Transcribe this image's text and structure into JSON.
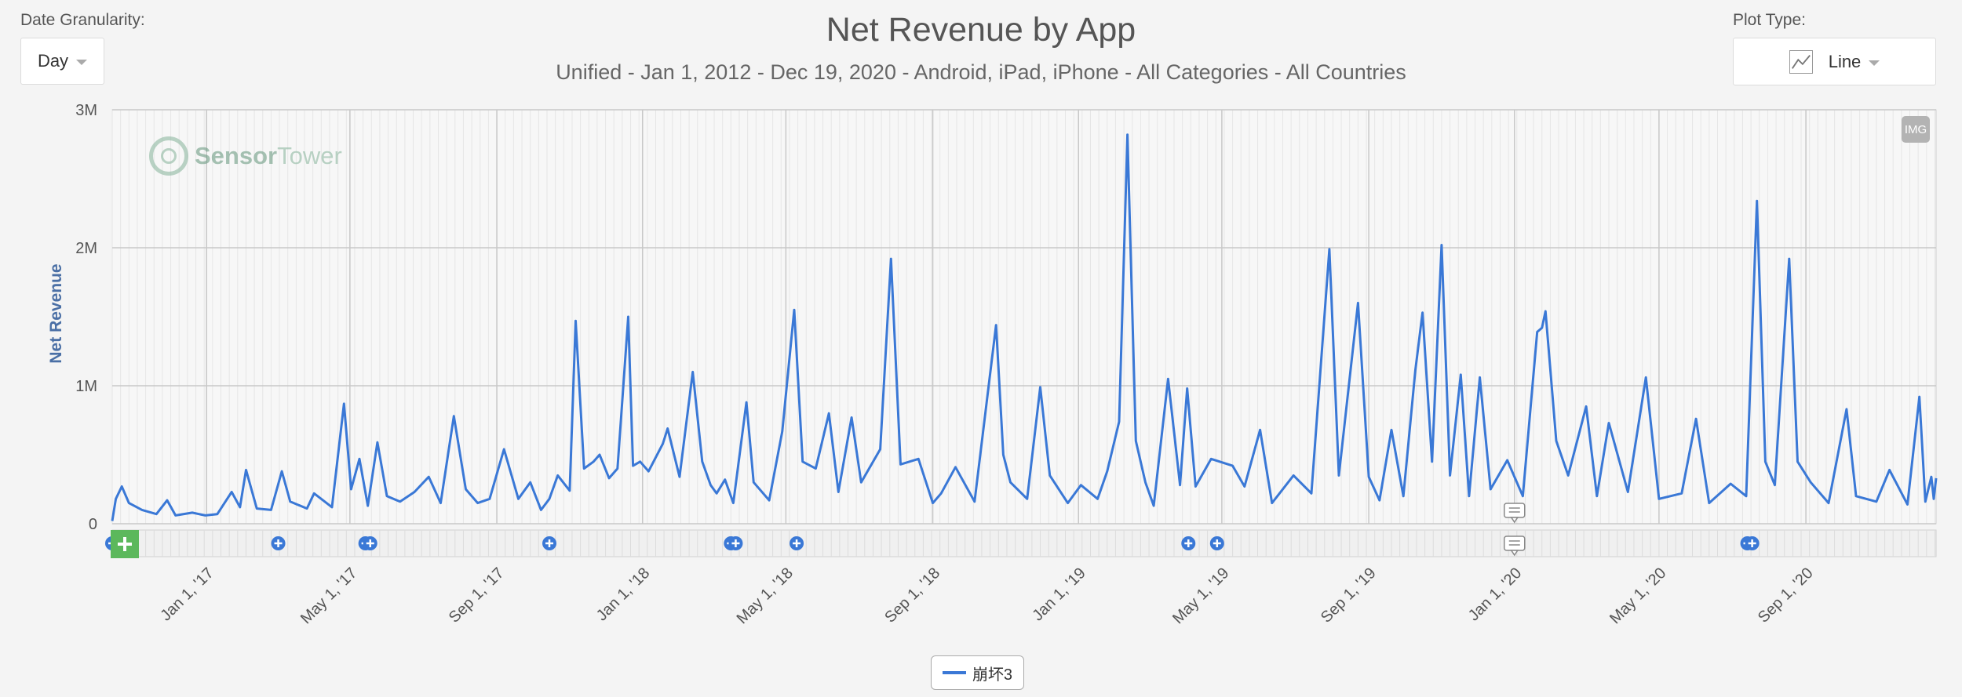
{
  "controls": {
    "date_granularity_label": "Date Granularity:",
    "date_granularity_value": "Day",
    "plot_type_label": "Plot Type:",
    "plot_type_value": "Line",
    "export_button": "IMG"
  },
  "watermark": {
    "bold": "Sensor",
    "light": "Tower"
  },
  "colors": {
    "series": "#3a78d6",
    "marker": "#3a78d6",
    "add_button": "#5cb85c",
    "background": "#f4f4f4"
  },
  "chart_data": {
    "type": "line",
    "title": "Net Revenue by App",
    "subtitle": "Unified - Jan 1, 2012 - Dec 19, 2020 - Android, iPad, iPhone - All Categories - All Countries",
    "ylabel": "Net Revenue",
    "xlabel": "",
    "ylim": [
      0,
      3000000
    ],
    "yticks": [
      {
        "value": 0,
        "label": "0"
      },
      {
        "value": 1000000,
        "label": "1M"
      },
      {
        "value": 2000000,
        "label": "2M"
      },
      {
        "value": 3000000,
        "label": "3M"
      }
    ],
    "xlim": [
      "2016-10-14",
      "2020-12-19"
    ],
    "xticks": [
      {
        "date": "2017-01-01",
        "label": "Jan 1, '17"
      },
      {
        "date": "2017-05-01",
        "label": "May 1, '17"
      },
      {
        "date": "2017-09-01",
        "label": "Sep 1, '17"
      },
      {
        "date": "2018-01-01",
        "label": "Jan 1, '18"
      },
      {
        "date": "2018-05-01",
        "label": "May 1, '18"
      },
      {
        "date": "2018-09-01",
        "label": "Sep 1, '18"
      },
      {
        "date": "2019-01-01",
        "label": "Jan 1, '19"
      },
      {
        "date": "2019-05-01",
        "label": "May 1, '19"
      },
      {
        "date": "2019-09-01",
        "label": "Sep 1, '19"
      },
      {
        "date": "2020-01-01",
        "label": "Jan 1, '20"
      },
      {
        "date": "2020-05-01",
        "label": "May 1, '20"
      },
      {
        "date": "2020-09-01",
        "label": "Sep 1, '20"
      }
    ],
    "grid": true,
    "legend_position": "bottom-center",
    "series": [
      {
        "name": "崩坏3",
        "color": "#3a78d6",
        "points": [
          [
            "2016-10-14",
            20000
          ],
          [
            "2016-10-17",
            180000
          ],
          [
            "2016-10-22",
            270000
          ],
          [
            "2016-10-28",
            150000
          ],
          [
            "2016-11-08",
            100000
          ],
          [
            "2016-11-20",
            70000
          ],
          [
            "2016-11-29",
            170000
          ],
          [
            "2016-12-06",
            60000
          ],
          [
            "2016-12-20",
            80000
          ],
          [
            "2016-12-31",
            60000
          ],
          [
            "2017-01-10",
            70000
          ],
          [
            "2017-01-22",
            230000
          ],
          [
            "2017-01-29",
            120000
          ],
          [
            "2017-02-03",
            390000
          ],
          [
            "2017-02-12",
            110000
          ],
          [
            "2017-02-24",
            100000
          ],
          [
            "2017-03-05",
            380000
          ],
          [
            "2017-03-12",
            160000
          ],
          [
            "2017-03-26",
            110000
          ],
          [
            "2017-04-01",
            220000
          ],
          [
            "2017-04-16",
            120000
          ],
          [
            "2017-04-26",
            870000
          ],
          [
            "2017-05-02",
            250000
          ],
          [
            "2017-05-09",
            470000
          ],
          [
            "2017-05-16",
            130000
          ],
          [
            "2017-05-24",
            590000
          ],
          [
            "2017-06-01",
            200000
          ],
          [
            "2017-06-12",
            160000
          ],
          [
            "2017-06-24",
            230000
          ],
          [
            "2017-07-06",
            340000
          ],
          [
            "2017-07-16",
            150000
          ],
          [
            "2017-07-27",
            780000
          ],
          [
            "2017-08-06",
            250000
          ],
          [
            "2017-08-16",
            150000
          ],
          [
            "2017-08-26",
            180000
          ],
          [
            "2017-09-07",
            540000
          ],
          [
            "2017-09-19",
            180000
          ],
          [
            "2017-09-29",
            300000
          ],
          [
            "2017-10-08",
            100000
          ],
          [
            "2017-10-15",
            180000
          ],
          [
            "2017-10-22",
            350000
          ],
          [
            "2017-11-01",
            240000
          ],
          [
            "2017-11-06",
            1470000
          ],
          [
            "2017-11-13",
            400000
          ],
          [
            "2017-11-21",
            450000
          ],
          [
            "2017-11-26",
            500000
          ],
          [
            "2017-12-04",
            330000
          ],
          [
            "2017-12-11",
            400000
          ],
          [
            "2017-12-20",
            1500000
          ],
          [
            "2017-12-24",
            420000
          ],
          [
            "2017-12-30",
            450000
          ],
          [
            "2018-01-06",
            380000
          ],
          [
            "2018-01-18",
            580000
          ],
          [
            "2018-01-22",
            690000
          ],
          [
            "2018-02-01",
            340000
          ],
          [
            "2018-02-12",
            1100000
          ],
          [
            "2018-02-20",
            450000
          ],
          [
            "2018-02-27",
            280000
          ],
          [
            "2018-03-04",
            220000
          ],
          [
            "2018-03-11",
            320000
          ],
          [
            "2018-03-18",
            150000
          ],
          [
            "2018-03-29",
            880000
          ],
          [
            "2018-04-04",
            300000
          ],
          [
            "2018-04-17",
            170000
          ],
          [
            "2018-04-28",
            670000
          ],
          [
            "2018-05-08",
            1550000
          ],
          [
            "2018-05-15",
            450000
          ],
          [
            "2018-05-26",
            400000
          ],
          [
            "2018-06-06",
            800000
          ],
          [
            "2018-06-14",
            230000
          ],
          [
            "2018-06-25",
            770000
          ],
          [
            "2018-07-03",
            300000
          ],
          [
            "2018-07-19",
            540000
          ],
          [
            "2018-07-28",
            1920000
          ],
          [
            "2018-08-05",
            430000
          ],
          [
            "2018-08-20",
            470000
          ],
          [
            "2018-09-01",
            150000
          ],
          [
            "2018-09-08",
            220000
          ],
          [
            "2018-09-20",
            410000
          ],
          [
            "2018-10-06",
            160000
          ],
          [
            "2018-10-24",
            1440000
          ],
          [
            "2018-10-30",
            500000
          ],
          [
            "2018-11-05",
            300000
          ],
          [
            "2018-11-19",
            180000
          ],
          [
            "2018-11-30",
            990000
          ],
          [
            "2018-12-08",
            350000
          ],
          [
            "2018-12-23",
            150000
          ],
          [
            "2019-01-03",
            280000
          ],
          [
            "2019-01-17",
            180000
          ],
          [
            "2019-01-25",
            380000
          ],
          [
            "2019-02-04",
            740000
          ],
          [
            "2019-02-11",
            2820000
          ],
          [
            "2019-02-18",
            600000
          ],
          [
            "2019-02-26",
            300000
          ],
          [
            "2019-03-05",
            130000
          ],
          [
            "2019-03-17",
            1050000
          ],
          [
            "2019-03-27",
            280000
          ],
          [
            "2019-04-02",
            980000
          ],
          [
            "2019-04-09",
            270000
          ],
          [
            "2019-04-22",
            470000
          ],
          [
            "2019-05-10",
            420000
          ],
          [
            "2019-05-20",
            270000
          ],
          [
            "2019-06-02",
            680000
          ],
          [
            "2019-06-12",
            150000
          ],
          [
            "2019-06-30",
            350000
          ],
          [
            "2019-07-15",
            220000
          ],
          [
            "2019-07-30",
            1990000
          ],
          [
            "2019-08-07",
            350000
          ],
          [
            "2019-08-23",
            1600000
          ],
          [
            "2019-09-01",
            340000
          ],
          [
            "2019-09-10",
            170000
          ],
          [
            "2019-09-20",
            680000
          ],
          [
            "2019-09-30",
            200000
          ],
          [
            "2019-10-10",
            1110000
          ],
          [
            "2019-10-16",
            1530000
          ],
          [
            "2019-10-24",
            450000
          ],
          [
            "2019-11-01",
            2020000
          ],
          [
            "2019-11-08",
            350000
          ],
          [
            "2019-11-17",
            1080000
          ],
          [
            "2019-11-24",
            200000
          ],
          [
            "2019-12-03",
            1060000
          ],
          [
            "2019-12-12",
            250000
          ],
          [
            "2019-12-26",
            460000
          ],
          [
            "2020-01-08",
            200000
          ],
          [
            "2020-01-20",
            1390000
          ],
          [
            "2020-01-24",
            1420000
          ],
          [
            "2020-01-27",
            1540000
          ],
          [
            "2020-02-05",
            600000
          ],
          [
            "2020-02-15",
            350000
          ],
          [
            "2020-03-01",
            850000
          ],
          [
            "2020-03-10",
            200000
          ],
          [
            "2020-03-20",
            730000
          ],
          [
            "2020-04-05",
            230000
          ],
          [
            "2020-04-20",
            1060000
          ],
          [
            "2020-05-01",
            180000
          ],
          [
            "2020-05-20",
            220000
          ],
          [
            "2020-06-01",
            760000
          ],
          [
            "2020-06-12",
            150000
          ],
          [
            "2020-06-30",
            290000
          ],
          [
            "2020-07-13",
            200000
          ],
          [
            "2020-07-22",
            2340000
          ],
          [
            "2020-07-29",
            450000
          ],
          [
            "2020-08-06",
            280000
          ],
          [
            "2020-08-18",
            1920000
          ],
          [
            "2020-08-25",
            450000
          ],
          [
            "2020-09-05",
            300000
          ],
          [
            "2020-09-20",
            150000
          ],
          [
            "2020-10-05",
            830000
          ],
          [
            "2020-10-13",
            200000
          ],
          [
            "2020-10-30",
            160000
          ],
          [
            "2020-11-10",
            390000
          ],
          [
            "2020-11-25",
            140000
          ],
          [
            "2020-12-05",
            920000
          ],
          [
            "2020-12-10",
            160000
          ],
          [
            "2020-12-15",
            340000
          ],
          [
            "2020-12-17",
            180000
          ],
          [
            "2020-12-19",
            330000
          ]
        ]
      }
    ],
    "event_markers": [
      "2016-10-14",
      "2017-03-02",
      "2017-05-14",
      "2017-05-18",
      "2017-10-15",
      "2018-03-16",
      "2018-03-20",
      "2018-05-10",
      "2019-04-03",
      "2019-04-27",
      "2020-07-14",
      "2020-07-18"
    ],
    "note_markers": [
      "2020-01-01"
    ]
  }
}
